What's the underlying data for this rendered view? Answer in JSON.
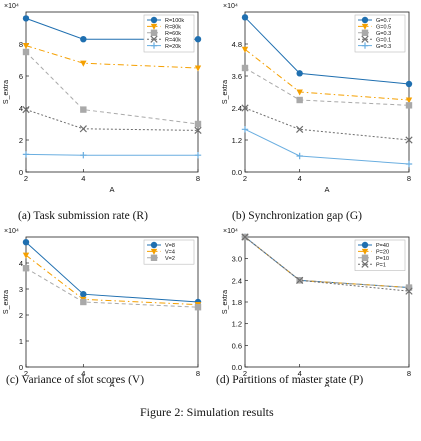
{
  "figure_caption": "Figure 2: Simulation results",
  "colors": {
    "s1": "#1f6fb0",
    "s2": "#f5a000",
    "s3": "#a9a9a9",
    "s4": "#6e6e6e",
    "s5": "#6aaee0"
  },
  "chart_data": [
    {
      "type": "line",
      "panel": "a",
      "caption": "(a) Task submission rate (R)",
      "xlabel": "A",
      "ylabel": "S_extra",
      "exponent": "×10⁴",
      "x": [
        2,
        4,
        8
      ],
      "xticks": [
        2,
        4,
        8
      ],
      "xlim": [
        2,
        8
      ],
      "yticks": [
        0,
        2,
        4,
        6,
        8
      ],
      "ylim": [
        0,
        10
      ],
      "legend_position": "top-right",
      "series": [
        {
          "name": "R=100k",
          "values": [
            9.6,
            8.3,
            8.3
          ],
          "marker": "circle",
          "dash": "",
          "color": "#1f6fb0"
        },
        {
          "name": "R=80k",
          "values": [
            7.9,
            6.8,
            6.5
          ],
          "marker": "triangle",
          "dash": "6,3,1.5,3",
          "color": "#f5a000"
        },
        {
          "name": "R=60k",
          "values": [
            7.5,
            3.9,
            3.0
          ],
          "marker": "square",
          "dash": "4,3",
          "color": "#a9a9a9"
        },
        {
          "name": "R=40k",
          "values": [
            3.9,
            2.7,
            2.6
          ],
          "marker": "x",
          "dash": "2,2",
          "color": "#6e6e6e"
        },
        {
          "name": "R=20k",
          "values": [
            1.1,
            1.05,
            1.05
          ],
          "marker": "plus",
          "dash": "",
          "color": "#6aaee0"
        }
      ]
    },
    {
      "type": "line",
      "panel": "b",
      "caption": "(b) Synchronization gap (G)",
      "xlabel": "A",
      "ylabel": "S_extra",
      "exponent": "×10⁴",
      "x": [
        2,
        4,
        8
      ],
      "xticks": [
        2,
        4,
        8
      ],
      "xlim": [
        2,
        8
      ],
      "yticks": [
        "0.0",
        "1.2",
        "2.4",
        "3.6",
        "4.8"
      ],
      "ylim": [
        0,
        6
      ],
      "legend_position": "top-right",
      "series": [
        {
          "name": "G=0.7",
          "values": [
            5.8,
            3.7,
            3.3
          ],
          "marker": "circle",
          "dash": "",
          "color": "#1f6fb0"
        },
        {
          "name": "G=0.5",
          "values": [
            4.6,
            3.0,
            2.7
          ],
          "marker": "triangle",
          "dash": "6,3,1.5,3",
          "color": "#f5a000"
        },
        {
          "name": "G=0.3",
          "values": [
            3.9,
            2.7,
            2.5
          ],
          "marker": "square",
          "dash": "4,3",
          "color": "#a9a9a9"
        },
        {
          "name": "G=0.1",
          "values": [
            2.4,
            1.6,
            1.2
          ],
          "marker": "x",
          "dash": "2,2",
          "color": "#6e6e6e"
        },
        {
          "name": "G=0.3",
          "values": [
            1.6,
            0.6,
            0.3
          ],
          "marker": "plus",
          "dash": "",
          "color": "#6aaee0"
        }
      ]
    },
    {
      "type": "line",
      "panel": "c",
      "caption": "(c) Variance of slot scores (V)",
      "xlabel": "A",
      "ylabel": "S_extra",
      "exponent": "×10⁴",
      "x": [
        2,
        4,
        8
      ],
      "xticks": [
        2,
        4,
        8
      ],
      "xlim": [
        2,
        8
      ],
      "yticks": [
        0,
        1,
        2,
        3,
        4
      ],
      "ylim": [
        0,
        5
      ],
      "legend_position": "top-right",
      "series": [
        {
          "name": "V=8",
          "values": [
            4.8,
            2.8,
            2.5
          ],
          "marker": "circle",
          "dash": "",
          "color": "#1f6fb0"
        },
        {
          "name": "V=4",
          "values": [
            4.3,
            2.6,
            2.4
          ],
          "marker": "triangle",
          "dash": "6,3,1.5,3",
          "color": "#f5a000"
        },
        {
          "name": "V=2",
          "values": [
            3.8,
            2.5,
            2.3
          ],
          "marker": "square",
          "dash": "4,3",
          "color": "#a9a9a9"
        }
      ]
    },
    {
      "type": "line",
      "panel": "d",
      "caption": "(d) Partitions of master state (P)",
      "xlabel": "A",
      "ylabel": "S_extra",
      "exponent": "×10⁴",
      "x": [
        2,
        4,
        8
      ],
      "xticks": [
        2,
        4,
        8
      ],
      "xlim": [
        2,
        8
      ],
      "yticks": [
        "0.0",
        "0.6",
        "1.2",
        "1.8",
        "2.4",
        "3.0"
      ],
      "ylim": [
        0,
        3.6
      ],
      "legend_position": "top-right",
      "series": [
        {
          "name": "P=40",
          "values": [
            3.6,
            2.4,
            2.2
          ],
          "marker": "circle",
          "dash": "",
          "color": "#1f6fb0"
        },
        {
          "name": "P=20",
          "values": [
            3.6,
            2.4,
            2.2
          ],
          "marker": "triangle",
          "dash": "6,3,1.5,3",
          "color": "#f5a000"
        },
        {
          "name": "P=10",
          "values": [
            3.6,
            2.4,
            2.2
          ],
          "marker": "square",
          "dash": "4,3",
          "color": "#a9a9a9"
        },
        {
          "name": "P=1",
          "values": [
            3.6,
            2.4,
            2.1
          ],
          "marker": "x",
          "dash": "2,2",
          "color": "#6e6e6e"
        }
      ]
    }
  ]
}
